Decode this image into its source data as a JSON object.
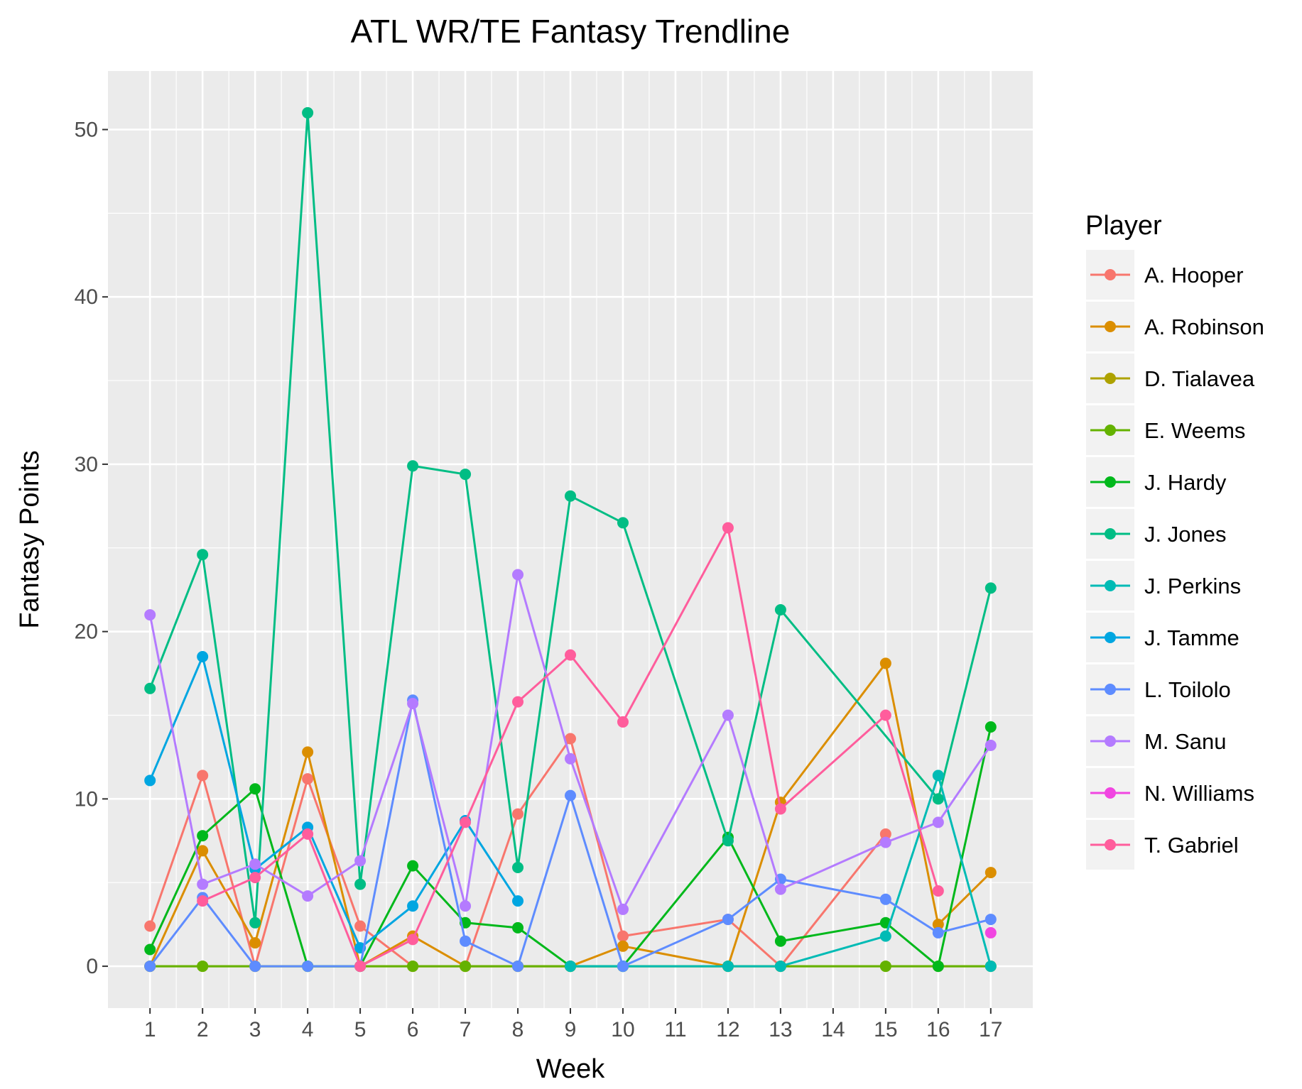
{
  "chart_data": {
    "type": "line",
    "title": "ATL WR/TE Fantasy Trendline",
    "xlabel": "Week",
    "ylabel": "Fantasy Points",
    "x_ticks": [
      "1",
      "2",
      "3",
      "4",
      "5",
      "6",
      "7",
      "8",
      "9",
      "10",
      "11",
      "12",
      "13",
      "14",
      "15",
      "16",
      "17"
    ],
    "y_ticks": [
      0,
      10,
      20,
      30,
      40,
      50
    ],
    "xlim": [
      0.2,
      17.8
    ],
    "ylim": [
      -2.5,
      53.5
    ],
    "grid": true,
    "legend_position": "right",
    "legend_title": "Player",
    "series": [
      {
        "name": "A. Hooper",
        "color": "#F8766D",
        "points": [
          [
            1,
            2.4
          ],
          [
            2,
            11.4
          ],
          [
            3,
            0
          ],
          [
            4,
            11.2
          ],
          [
            5,
            2.4
          ],
          [
            6,
            0
          ],
          [
            7,
            0
          ],
          [
            8,
            9.1
          ],
          [
            9,
            13.6
          ],
          [
            10,
            1.8
          ],
          [
            12,
            2.8
          ],
          [
            13,
            0
          ],
          [
            15,
            7.9
          ]
        ]
      },
      {
        "name": "A. Robinson",
        "color": "#DB8E00",
        "points": [
          [
            1,
            0
          ],
          [
            2,
            6.9
          ],
          [
            3,
            1.4
          ],
          [
            4,
            12.8
          ],
          [
            5,
            0
          ],
          [
            6,
            1.8
          ],
          [
            7,
            0
          ],
          [
            8,
            0
          ],
          [
            9,
            0
          ],
          [
            10,
            1.2
          ],
          [
            12,
            0
          ],
          [
            13,
            9.8
          ],
          [
            15,
            18.1
          ],
          [
            16,
            2.5
          ],
          [
            17,
            5.6
          ]
        ]
      },
      {
        "name": "D. Tialavea",
        "color": "#AEA200",
        "points": [
          [
            1,
            0
          ],
          [
            2,
            0
          ],
          [
            3,
            0
          ],
          [
            4,
            0
          ],
          [
            5,
            0
          ],
          [
            6,
            0
          ],
          [
            7,
            0
          ],
          [
            8,
            0
          ],
          [
            9,
            0
          ],
          [
            10,
            0
          ],
          [
            12,
            0
          ],
          [
            13,
            0
          ],
          [
            15,
            0
          ],
          [
            16,
            0
          ],
          [
            17,
            0
          ]
        ]
      },
      {
        "name": "E. Weems",
        "color": "#64B200",
        "points": [
          [
            1,
            0
          ],
          [
            2,
            0
          ],
          [
            3,
            0
          ],
          [
            4,
            0
          ],
          [
            5,
            0
          ],
          [
            6,
            0
          ],
          [
            7,
            0
          ],
          [
            8,
            0
          ],
          [
            9,
            0
          ],
          [
            10,
            0
          ],
          [
            12,
            0
          ],
          [
            13,
            0
          ],
          [
            15,
            0
          ],
          [
            16,
            0
          ],
          [
            17,
            0
          ]
        ]
      },
      {
        "name": "J. Hardy",
        "color": "#00B81B",
        "points": [
          [
            1,
            1.0
          ],
          [
            2,
            7.8
          ],
          [
            3,
            10.6
          ],
          [
            4,
            0
          ],
          [
            5,
            0
          ],
          [
            6,
            6.0
          ],
          [
            7,
            2.6
          ],
          [
            8,
            2.3
          ],
          [
            9,
            0
          ],
          [
            10,
            0
          ],
          [
            12,
            7.7
          ],
          [
            13,
            1.5
          ],
          [
            15,
            2.6
          ],
          [
            16,
            0
          ],
          [
            17,
            14.3
          ]
        ]
      },
      {
        "name": "J. Jones",
        "color": "#00BD84",
        "points": [
          [
            1,
            16.6
          ],
          [
            2,
            24.6
          ],
          [
            3,
            2.6
          ],
          [
            4,
            51.0
          ],
          [
            5,
            4.9
          ],
          [
            6,
            29.9
          ],
          [
            7,
            29.4
          ],
          [
            8,
            5.9
          ],
          [
            9,
            28.1
          ],
          [
            10,
            26.5
          ],
          [
            12,
            7.5
          ],
          [
            13,
            21.3
          ],
          [
            16,
            10.0
          ],
          [
            17,
            22.6
          ]
        ]
      },
      {
        "name": "J. Perkins",
        "color": "#00BBB5",
        "points": [
          [
            9,
            0
          ],
          [
            10,
            0
          ],
          [
            12,
            0
          ],
          [
            13,
            0
          ],
          [
            15,
            1.8
          ],
          [
            16,
            11.4
          ],
          [
            17,
            0
          ]
        ]
      },
      {
        "name": "J. Tamme",
        "color": "#00A6E1",
        "points": [
          [
            1,
            11.1
          ],
          [
            2,
            18.5
          ],
          [
            3,
            5.8
          ],
          [
            4,
            8.3
          ],
          [
            5,
            1.1
          ],
          [
            6,
            3.6
          ],
          [
            7,
            8.7
          ],
          [
            8,
            3.9
          ]
        ]
      },
      {
        "name": "L. Toilolo",
        "color": "#5E8CFF",
        "points": [
          [
            1,
            0
          ],
          [
            2,
            4.1
          ],
          [
            3,
            0
          ],
          [
            4,
            0
          ],
          [
            5,
            0
          ],
          [
            6,
            15.9
          ],
          [
            7,
            1.5
          ],
          [
            8,
            0
          ],
          [
            9,
            10.2
          ],
          [
            10,
            0
          ],
          [
            12,
            2.8
          ],
          [
            13,
            5.2
          ],
          [
            15,
            4.0
          ],
          [
            16,
            2.0
          ],
          [
            17,
            2.8
          ]
        ]
      },
      {
        "name": "M. Sanu",
        "color": "#B47BFF",
        "points": [
          [
            1,
            21.0
          ],
          [
            2,
            4.9
          ],
          [
            3,
            6.1
          ],
          [
            4,
            4.2
          ],
          [
            5,
            6.3
          ],
          [
            6,
            15.7
          ],
          [
            7,
            3.6
          ],
          [
            8,
            23.4
          ],
          [
            9,
            12.4
          ],
          [
            10,
            3.4
          ],
          [
            12,
            15.0
          ],
          [
            13,
            4.6
          ],
          [
            15,
            7.4
          ],
          [
            16,
            8.6
          ],
          [
            17,
            13.2
          ]
        ]
      },
      {
        "name": "N. Williams",
        "color": "#F145E1",
        "points": [
          [
            17,
            2.0
          ]
        ]
      },
      {
        "name": "T. Gabriel",
        "color": "#FF5D9C",
        "points": [
          [
            2,
            3.9
          ],
          [
            3,
            5.3
          ],
          [
            4,
            7.9
          ],
          [
            5,
            0
          ],
          [
            6,
            1.6
          ],
          [
            7,
            8.6
          ],
          [
            8,
            15.8
          ],
          [
            9,
            18.6
          ],
          [
            10,
            14.6
          ],
          [
            12,
            26.2
          ],
          [
            13,
            9.4
          ],
          [
            15,
            15.0
          ],
          [
            16,
            4.5
          ]
        ]
      }
    ]
  }
}
